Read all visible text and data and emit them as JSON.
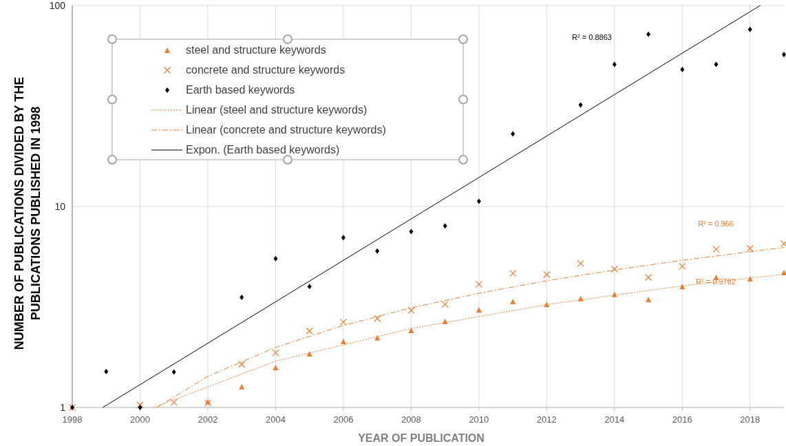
{
  "chart_data": {
    "type": "scatter",
    "xlabel": "YEAR OF PUBLICATION",
    "ylabel": "NUMBER OF PUBLICATIONS DIVIDED BY THE PUBLICATIONS PUBLISHED IN 1998",
    "log": "y",
    "grid": true,
    "legend": "top left",
    "x": [
      1998,
      1999,
      2000,
      2001,
      2002,
      2003,
      2004,
      2005,
      2006,
      2007,
      2008,
      2009,
      2010,
      2011,
      2012,
      2013,
      2014,
      2015,
      2016,
      2017,
      2018,
      2019
    ],
    "xlim": [
      1998,
      2019
    ],
    "xticks": [
      1998,
      2000,
      2002,
      2004,
      2006,
      2008,
      2010,
      2012,
      2014,
      2016,
      2018
    ],
    "ylim": [
      1,
      100
    ],
    "yticks": [
      1,
      10,
      100
    ],
    "series": [
      {
        "name": "steel and structure keywords",
        "marker": "triangle",
        "color": "#ed7d31",
        "values": [
          null,
          null,
          null,
          null,
          1.07,
          1.27,
          1.58,
          1.85,
          2.13,
          2.22,
          2.42,
          2.68,
          3.06,
          3.37,
          3.26,
          3.48,
          3.65,
          3.45,
          4.0,
          4.44,
          4.37,
          4.69
        ]
      },
      {
        "name": "concrete and structure keywords",
        "marker": "cross",
        "color": "#ed7d31",
        "values": [
          1,
          null,
          1.03,
          1.06,
          1.05,
          1.64,
          1.87,
          2.4,
          2.66,
          2.77,
          3.04,
          3.26,
          4.1,
          4.65,
          4.58,
          5.2,
          4.88,
          4.44,
          5.04,
          6.13,
          6.18,
          6.53
        ]
      },
      {
        "name": "Earth based keywords",
        "marker": "diamond",
        "color": "#000000",
        "values": [
          1,
          1.51,
          1,
          1.5,
          null,
          3.53,
          5.5,
          4.0,
          7.0,
          6.0,
          7.5,
          8.0,
          10.6,
          23,
          null,
          32,
          51,
          72,
          48,
          51,
          76,
          57
        ]
      },
      {
        "name": "Linear (steel and structure keywords)",
        "type": "line",
        "line_style": "dotted",
        "color": "#ed7d31",
        "x": [
          2000.4,
          2004,
          2008,
          2012,
          2016,
          2019
        ],
        "values": [
          1,
          1.7,
          2.47,
          3.25,
          4.03,
          4.6
        ]
      },
      {
        "name": "Linear (concrete and structure keywords)",
        "type": "line",
        "line_style": "dashdot",
        "color": "#ed7d31",
        "x": [
          2000.5,
          2002,
          2004,
          2006,
          2008,
          2010,
          2012,
          2014,
          2016,
          2019
        ],
        "values": [
          1,
          1.43,
          1.99,
          2.56,
          3.13,
          3.7,
          4.27,
          4.83,
          5.4,
          6.25
        ]
      },
      {
        "name": "Expon. (Earth based keywords)",
        "type": "line",
        "line_style": "solid",
        "color": "#000000",
        "x": [
          1998.9,
          2018.3
        ],
        "values": [
          1,
          100
        ]
      }
    ],
    "annotations": [
      "R² = 0.8863",
      "R² = 0.966",
      "R² = 0.9782"
    ]
  }
}
